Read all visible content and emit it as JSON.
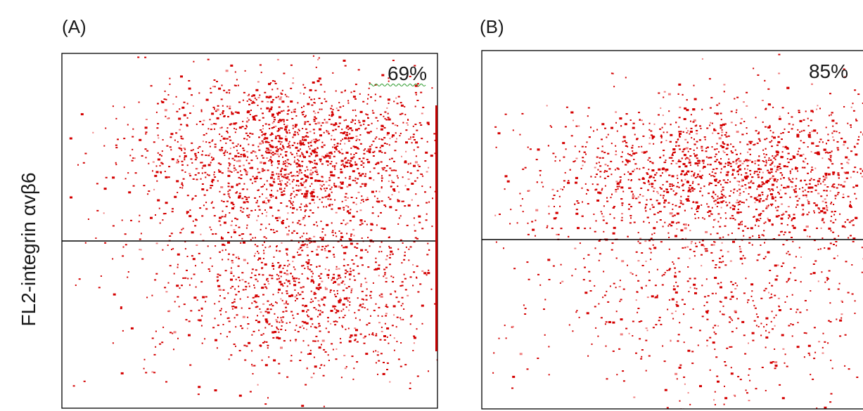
{
  "chart_data": {
    "type": "scatter",
    "ylabel": "FL2-integrin αvβ6",
    "colors": {
      "points": "#d40000",
      "points_light": "#f08080",
      "frame": "#000000"
    },
    "panels": [
      {
        "label": "(A)",
        "annotation": "69%",
        "gate_fraction_from_bottom": 0.47,
        "clusters": [
          {
            "region": "upper",
            "x_center": 0.62,
            "y_center": 0.72,
            "x_spread": 0.2,
            "y_spread": 0.11,
            "count": 1600
          },
          {
            "region": "lower",
            "x_center": 0.66,
            "y_center": 0.33,
            "x_spread": 0.18,
            "y_spread": 0.11,
            "count": 800
          },
          {
            "region": "diffuse",
            "x_center": 0.55,
            "y_center": 0.45,
            "x_spread": 0.3,
            "y_spread": 0.25,
            "count": 500
          }
        ]
      },
      {
        "label": "(B)",
        "annotation": "85%",
        "gate_fraction_from_bottom": 0.47,
        "clusters": [
          {
            "region": "upper",
            "x_center": 0.62,
            "y_center": 0.66,
            "x_spread": 0.24,
            "y_spread": 0.1,
            "count": 1900
          },
          {
            "region": "lower",
            "x_center": 0.6,
            "y_center": 0.3,
            "x_spread": 0.25,
            "y_spread": 0.14,
            "count": 450
          },
          {
            "region": "diffuse",
            "x_center": 0.5,
            "y_center": 0.4,
            "x_spread": 0.3,
            "y_spread": 0.25,
            "count": 300
          }
        ]
      }
    ]
  }
}
